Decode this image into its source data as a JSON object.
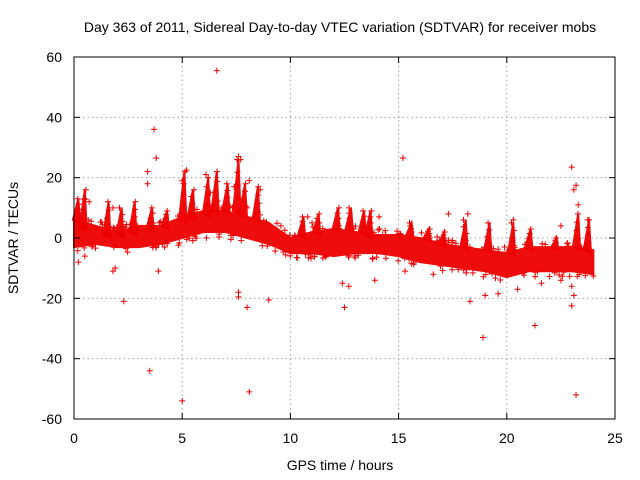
{
  "chart_data": {
    "type": "scatter",
    "title": "Day 363 of 2011, Sidereal Day-to-day VTEC variation (SDTVAR) for receiver mobs",
    "xlabel": "GPS time / hours",
    "ylabel": "SDTVAR / TECUs",
    "xlim": [
      0,
      25
    ],
    "ylim": [
      -60,
      60
    ],
    "xticks": [
      "0",
      "5",
      "10",
      "15",
      "20",
      "25"
    ],
    "yticks": [
      "-60",
      "-40",
      "-20",
      "0",
      "20",
      "40",
      "60"
    ],
    "grid": true,
    "marker": "+",
    "color": "#ee0000",
    "series": [
      {
        "name": "SDTVAR",
        "dense_band": {
          "x": [
            0,
            1,
            2,
            3,
            4,
            5,
            6,
            7,
            8,
            9,
            10,
            11,
            12,
            13,
            14,
            15,
            16,
            17,
            18,
            19,
            20,
            21,
            22,
            23,
            24
          ],
          "y_upper": [
            6,
            4,
            2,
            4,
            4,
            7,
            9,
            9,
            7,
            5,
            0,
            2,
            3,
            2,
            1,
            1,
            0,
            -2,
            -3,
            -4,
            -5,
            -3,
            -3,
            -3,
            -4
          ],
          "y_lower": [
            -3,
            -2,
            -3,
            -3,
            -2,
            0,
            2,
            2,
            0,
            -2,
            -5,
            -5,
            -6,
            -5,
            -5,
            -6,
            -8,
            -9,
            -10,
            -11,
            -13,
            -11,
            -11,
            -11,
            -12
          ]
        },
        "spikes": [
          {
            "x": 0.2,
            "y": 6,
            "top": 13
          },
          {
            "x": 0.5,
            "y": 3,
            "top": 16
          },
          {
            "x": 1.6,
            "y": 1,
            "top": 12
          },
          {
            "x": 2.2,
            "y": 1,
            "top": 10
          },
          {
            "x": 2.8,
            "y": 2,
            "top": 12
          },
          {
            "x": 3.6,
            "y": 3,
            "top": 10
          },
          {
            "x": 4.3,
            "y": 4,
            "top": 9
          },
          {
            "x": 5.1,
            "y": 6,
            "top": 22
          },
          {
            "x": 5.5,
            "y": 7,
            "top": 16
          },
          {
            "x": 6.2,
            "y": 8,
            "top": 20
          },
          {
            "x": 6.6,
            "y": 9,
            "top": 22
          },
          {
            "x": 7.1,
            "y": 9,
            "top": 18
          },
          {
            "x": 7.6,
            "y": 9,
            "top": 26
          },
          {
            "x": 7.9,
            "y": 8,
            "top": 18
          },
          {
            "x": 8.5,
            "y": 6,
            "top": 17
          },
          {
            "x": 10.6,
            "y": 1,
            "top": 7
          },
          {
            "x": 11.3,
            "y": 2,
            "top": 8
          },
          {
            "x": 12.2,
            "y": 3,
            "top": 10
          },
          {
            "x": 12.8,
            "y": 3,
            "top": 10
          },
          {
            "x": 13.4,
            "y": 2,
            "top": 9
          },
          {
            "x": 13.7,
            "y": 1,
            "top": 9
          },
          {
            "x": 15.6,
            "y": 1,
            "top": 5
          },
          {
            "x": 16.4,
            "y": 0,
            "top": 3
          },
          {
            "x": 17.1,
            "y": -2,
            "top": 2
          },
          {
            "x": 18.1,
            "y": -3,
            "top": 6
          },
          {
            "x": 19.2,
            "y": -4,
            "top": 5
          },
          {
            "x": 20.3,
            "y": -5,
            "top": 5
          },
          {
            "x": 21.1,
            "y": -3,
            "top": 3
          },
          {
            "x": 22.3,
            "y": -3,
            "top": 0
          },
          {
            "x": 23.3,
            "y": -3,
            "top": 8
          },
          {
            "x": 23.8,
            "y": -4,
            "top": 6
          }
        ],
        "outliers": [
          [
            6.6,
            55.5
          ],
          [
            3.7,
            36
          ],
          [
            3.8,
            26.5
          ],
          [
            3.4,
            22
          ],
          [
            3.4,
            18
          ],
          [
            5.0,
            19
          ],
          [
            5.2,
            22.5
          ],
          [
            6.1,
            21
          ],
          [
            6.3,
            15
          ],
          [
            7.4,
            17
          ],
          [
            7.7,
            26
          ],
          [
            7.6,
            27
          ],
          [
            8.1,
            19
          ],
          [
            8.6,
            16
          ],
          [
            8.0,
            10
          ],
          [
            0.5,
            13
          ],
          [
            0.7,
            12
          ],
          [
            1.8,
            10
          ],
          [
            15.2,
            26.5
          ],
          [
            23.0,
            23.5
          ],
          [
            23.2,
            17.5
          ],
          [
            23.1,
            16
          ],
          [
            23.3,
            11
          ],
          [
            23.8,
            6
          ],
          [
            22.5,
            4
          ],
          [
            20.3,
            6
          ],
          [
            17.3,
            8
          ],
          [
            18.2,
            8
          ],
          [
            14.1,
            7
          ],
          [
            10.8,
            7
          ],
          [
            11.0,
            5
          ],
          [
            2.3,
            -21
          ],
          [
            1.9,
            -10
          ],
          [
            1.8,
            -11
          ],
          [
            3.5,
            -44
          ],
          [
            3.9,
            -11
          ],
          [
            5.0,
            -54
          ],
          [
            7.6,
            -18
          ],
          [
            7.6,
            -19.5
          ],
          [
            8.0,
            -23
          ],
          [
            8.1,
            -51
          ],
          [
            9.0,
            -20.5
          ],
          [
            12.4,
            -15
          ],
          [
            12.5,
            -23
          ],
          [
            12.7,
            -16
          ],
          [
            13.9,
            -14
          ],
          [
            15.3,
            -11
          ],
          [
            18.3,
            -21
          ],
          [
            18.9,
            -33
          ],
          [
            19.0,
            -19
          ],
          [
            19.6,
            -18.5
          ],
          [
            21.3,
            -29
          ],
          [
            21.6,
            -15
          ],
          [
            23.0,
            -16
          ],
          [
            23.0,
            -22.5
          ],
          [
            23.2,
            -52
          ],
          [
            23.1,
            -19
          ],
          [
            20.5,
            -17
          ],
          [
            22.5,
            -14
          ],
          [
            16.6,
            -12
          ],
          [
            0.2,
            -8
          ],
          [
            0.5,
            -6
          ]
        ]
      }
    ]
  }
}
